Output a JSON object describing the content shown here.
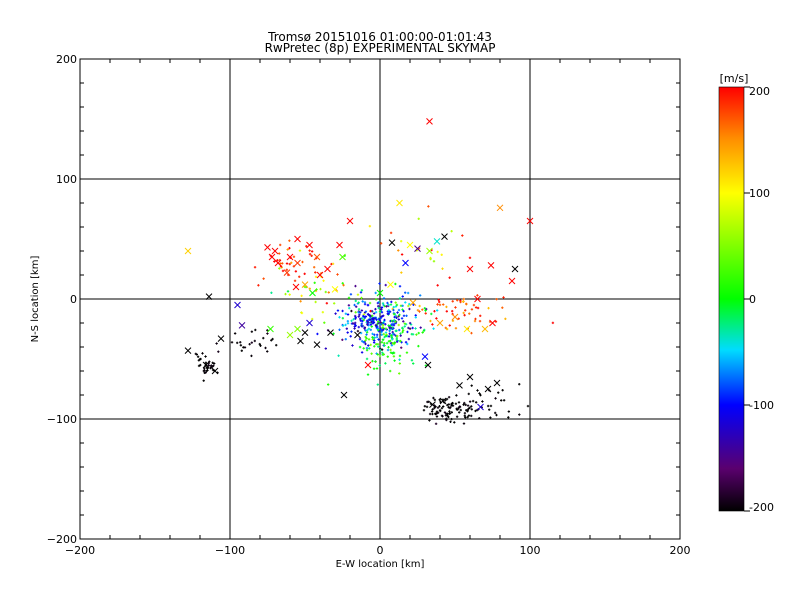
{
  "chart_data": {
    "type": "scatter",
    "title": "Tromsø 20151016 01:00:00-01:01:43",
    "subtitle": "RwPretec (8p) EXPERIMENTAL SKYMAP",
    "xlabel": "E-W location [km]",
    "ylabel": "N-S location [km]",
    "xlim": [
      -200,
      200
    ],
    "ylim": [
      -200,
      200
    ],
    "xticks": [
      -200,
      -100,
      0,
      100,
      200
    ],
    "yticks": [
      -200,
      -100,
      0,
      100,
      200
    ],
    "grid_lines": [
      -100,
      0,
      100
    ],
    "colorbar": {
      "label": "[m/s]",
      "range": [
        -200,
        200
      ],
      "ticks": [
        200,
        100,
        0,
        -100,
        -200
      ],
      "colormap": "rainbow (black-purple-blue-cyan-green-yellow-red)"
    },
    "clusters": [
      {
        "name": "central-multicolor",
        "cx": 0,
        "cy": -20,
        "sx": 14,
        "sy": 14,
        "n": 280,
        "vel_mean": -60,
        "vel_sd": 60
      },
      {
        "name": "central-core-blue",
        "cx": -5,
        "cy": -18,
        "sx": 8,
        "sy": 7,
        "n": 90,
        "vel_mean": -110,
        "vel_sd": 20
      },
      {
        "name": "central-south-green",
        "cx": 5,
        "cy": -38,
        "sx": 8,
        "sy": 12,
        "n": 70,
        "vel_mean": 10,
        "vel_sd": 25
      },
      {
        "name": "north-west-red",
        "cx": -60,
        "cy": 30,
        "sx": 13,
        "sy": 10,
        "n": 40,
        "vel_mean": 180,
        "vel_sd": 25
      },
      {
        "name": "west-mixed",
        "cx": -45,
        "cy": 5,
        "sx": 15,
        "sy": 12,
        "n": 35,
        "vel_mean": 90,
        "vel_sd": 60
      },
      {
        "name": "east-red",
        "cx": 55,
        "cy": -10,
        "sx": 18,
        "sy": 10,
        "n": 60,
        "vel_mean": 175,
        "vel_sd": 30
      },
      {
        "name": "south-east-black",
        "cx": 48,
        "cy": -92,
        "sx": 10,
        "sy": 5,
        "n": 100,
        "vel_mean": -200,
        "vel_sd": 5
      },
      {
        "name": "south-east-black-sparse",
        "cx": 75,
        "cy": -82,
        "sx": 14,
        "sy": 10,
        "n": 25,
        "vel_mean": -200,
        "vel_sd": 5
      },
      {
        "name": "south-west-black",
        "cx": -115,
        "cy": -55,
        "sx": 5,
        "sy": 5,
        "n": 40,
        "vel_mean": -200,
        "vel_sd": 5
      },
      {
        "name": "west-black",
        "cx": -85,
        "cy": -38,
        "sx": 8,
        "sy": 6,
        "n": 25,
        "vel_mean": -200,
        "vel_sd": 5
      },
      {
        "name": "north-scatter",
        "cx": 25,
        "cy": 45,
        "sx": 20,
        "sy": 15,
        "n": 22,
        "vel_mean": 120,
        "vel_sd": 60
      }
    ],
    "x_markers": [
      {
        "x": 33,
        "y": 148,
        "v": 200
      },
      {
        "x": 100,
        "y": 65,
        "v": 200
      },
      {
        "x": -20,
        "y": 65,
        "v": 200
      },
      {
        "x": -128,
        "y": 40,
        "v": 120
      },
      {
        "x": 13,
        "y": 80,
        "v": 110
      },
      {
        "x": 80,
        "y": 76,
        "v": 150
      },
      {
        "x": -75,
        "y": 43,
        "v": 200
      },
      {
        "x": -70,
        "y": 40,
        "v": 200
      },
      {
        "x": -72,
        "y": 35,
        "v": 200
      },
      {
        "x": -68,
        "y": 30,
        "v": 200
      },
      {
        "x": -55,
        "y": 50,
        "v": 200
      },
      {
        "x": -47,
        "y": 45,
        "v": 200
      },
      {
        "x": -60,
        "y": 35,
        "v": 200
      },
      {
        "x": -55,
        "y": 30,
        "v": 180
      },
      {
        "x": -42,
        "y": 35,
        "v": 170
      },
      {
        "x": -35,
        "y": 25,
        "v": 200
      },
      {
        "x": -27,
        "y": 45,
        "v": 200
      },
      {
        "x": -25,
        "y": 35,
        "v": 30
      },
      {
        "x": -56,
        "y": 10,
        "v": 200
      },
      {
        "x": -62,
        "y": 22,
        "v": 180
      },
      {
        "x": -50,
        "y": 12,
        "v": 140
      },
      {
        "x": -40,
        "y": 20,
        "v": 200
      },
      {
        "x": -30,
        "y": 8,
        "v": 100
      },
      {
        "x": -45,
        "y": 5,
        "v": 0
      },
      {
        "x": -114,
        "y": 2,
        "v": -200
      },
      {
        "x": -95,
        "y": -5,
        "v": -120
      },
      {
        "x": -92,
        "y": -22,
        "v": -140
      },
      {
        "x": -128,
        "y": -43,
        "v": -200
      },
      {
        "x": -116,
        "y": -55,
        "v": -200
      },
      {
        "x": -110,
        "y": -60,
        "v": -200
      },
      {
        "x": -106,
        "y": -33,
        "v": -200
      },
      {
        "x": -50,
        "y": -28,
        "v": -200
      },
      {
        "x": -53,
        "y": -35,
        "v": -200
      },
      {
        "x": -42,
        "y": -38,
        "v": -200
      },
      {
        "x": -47,
        "y": -20,
        "v": -120
      },
      {
        "x": -33,
        "y": -28,
        "v": -200
      },
      {
        "x": -55,
        "y": -25,
        "v": 50
      },
      {
        "x": -60,
        "y": -30,
        "v": 60
      },
      {
        "x": -73,
        "y": -25,
        "v": 20
      },
      {
        "x": -24,
        "y": -80,
        "v": -200
      },
      {
        "x": 8,
        "y": 47,
        "v": -200
      },
      {
        "x": 25,
        "y": 42,
        "v": -150
      },
      {
        "x": 43,
        "y": 52,
        "v": -200
      },
      {
        "x": 38,
        "y": 48,
        "v": -40
      },
      {
        "x": 20,
        "y": 45,
        "v": 100
      },
      {
        "x": 33,
        "y": 40,
        "v": 60
      },
      {
        "x": 17,
        "y": 30,
        "v": -100
      },
      {
        "x": 7,
        "y": 12,
        "v": 100
      },
      {
        "x": 22,
        "y": -3,
        "v": 140
      },
      {
        "x": 40,
        "y": -20,
        "v": 140
      },
      {
        "x": 30,
        "y": -48,
        "v": -100
      },
      {
        "x": 70,
        "y": -25,
        "v": 130
      },
      {
        "x": 75,
        "y": -20,
        "v": 200
      },
      {
        "x": 65,
        "y": 0,
        "v": 200
      },
      {
        "x": 50,
        "y": -15,
        "v": 150
      },
      {
        "x": 58,
        "y": -25,
        "v": 110
      },
      {
        "x": 60,
        "y": 25,
        "v": 200
      },
      {
        "x": 74,
        "y": 28,
        "v": 200
      },
      {
        "x": 90,
        "y": 25,
        "v": -200
      },
      {
        "x": 88,
        "y": 15,
        "v": 200
      },
      {
        "x": 35,
        "y": -88,
        "v": -200
      },
      {
        "x": 42,
        "y": -85,
        "v": -200
      },
      {
        "x": 53,
        "y": -72,
        "v": -200
      },
      {
        "x": 60,
        "y": -65,
        "v": -200
      },
      {
        "x": 72,
        "y": -75,
        "v": -200
      },
      {
        "x": 67,
        "y": -90,
        "v": -120
      },
      {
        "x": 78,
        "y": -70,
        "v": -200
      },
      {
        "x": 32,
        "y": -55,
        "v": -200
      },
      {
        "x": -8,
        "y": -55,
        "v": 200
      },
      {
        "x": -15,
        "y": -30,
        "v": -200
      },
      {
        "x": 0,
        "y": 5,
        "v": 0
      }
    ]
  }
}
